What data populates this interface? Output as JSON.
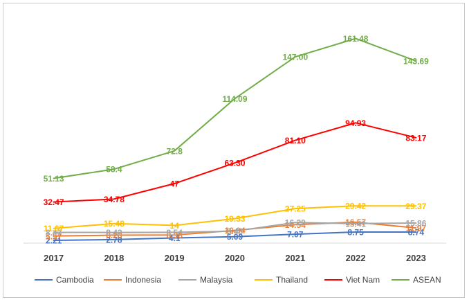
{
  "chart_data": {
    "type": "line",
    "title": "",
    "xlabel": "",
    "ylabel": "",
    "categories": [
      "2017",
      "2018",
      "2019",
      "2020",
      "2021",
      "2022",
      "2023"
    ],
    "ylim": [
      0,
      170
    ],
    "grid": false,
    "legend": "bottom",
    "series": [
      {
        "name": "Cambodia",
        "color": "#4472C4",
        "values": [
          2.21,
          2.78,
          4.1,
          5.09,
          7.07,
          8.75,
          8.74
        ],
        "labels": [
          "2.21",
          "2.78",
          "4.1",
          "5.09",
          "7.07",
          "8.75",
          "8.74"
        ]
      },
      {
        "name": "Indonesia",
        "color": "#ED7D31",
        "values": [
          5.57,
          6.28,
          6.38,
          10.04,
          14.54,
          16.57,
          11.97
        ],
        "labels": [
          "5.57",
          "6.28",
          "6.38",
          "10.04",
          "14.54",
          "16.57",
          "11.97"
        ]
      },
      {
        "name": "Malaysia",
        "color": "#A5A5A5",
        "values": [
          8.47,
          8.42,
          8.54,
          9.43,
          16.29,
          15.41,
          15.86
        ],
        "labels": [
          "8.47",
          "8.42",
          "8.54",
          "9.43",
          "16.29",
          "15.41",
          "15.86"
        ]
      },
      {
        "name": "Thailand",
        "color": "#FFC000",
        "values": [
          11.67,
          15.48,
          14,
          19.33,
          27.25,
          29.42,
          29.37
        ],
        "labels": [
          "11.67",
          "15.48",
          "14",
          "19.33",
          "27.25",
          "29.42",
          "29.37"
        ]
      },
      {
        "name": "Viet Nam",
        "color": "#FF0000",
        "values": [
          32.47,
          34.78,
          47,
          63.3,
          81.1,
          94.93,
          83.17
        ],
        "labels": [
          "32.47",
          "34.78",
          "47",
          "63.30",
          "81.10",
          "94.93",
          "83.17"
        ]
      },
      {
        "name": "ASEAN",
        "color": "#70AD47",
        "values": [
          51.13,
          58.4,
          72.8,
          114.09,
          147.0,
          161.48,
          143.69
        ],
        "labels": [
          "51.13",
          "58.4",
          "72.8",
          "114.09",
          "147.00",
          "161.48",
          "143.69"
        ]
      }
    ]
  }
}
